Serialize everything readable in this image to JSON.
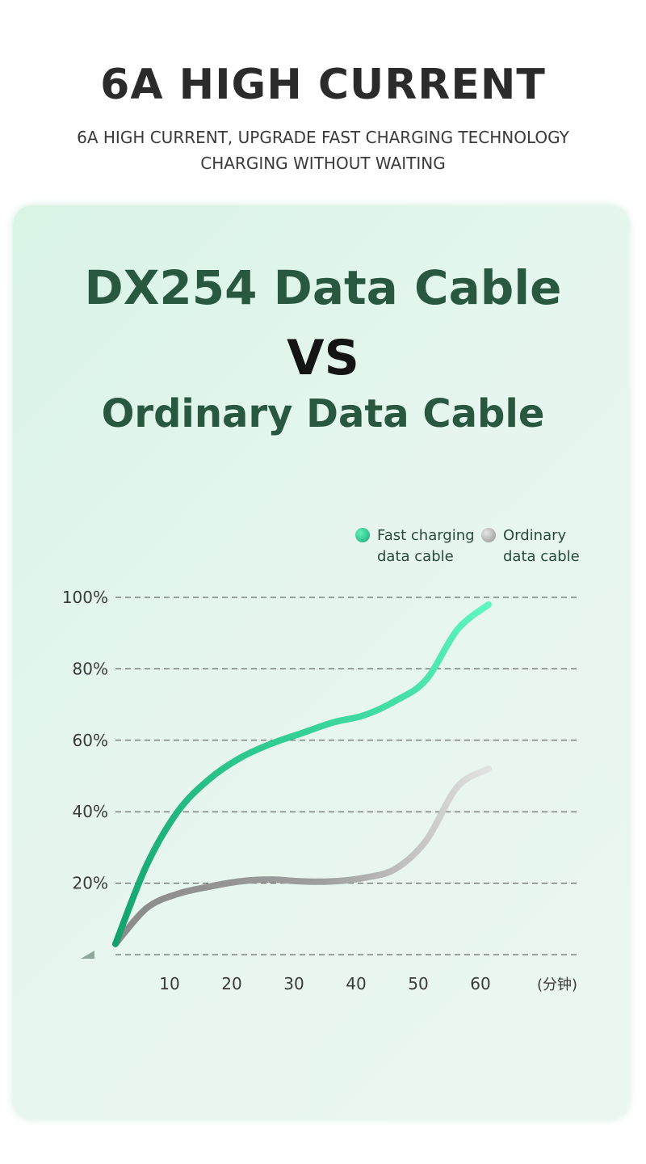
{
  "header": {
    "title": "6A HIGH CURRENT",
    "subtitle_line1": "6A HIGH CURRENT, UPGRADE FAST CHARGING TECHNOLOGY",
    "subtitle_line2": "CHARGING WITHOUT WAITING"
  },
  "comparison": {
    "product": "DX254 Data Cable",
    "versus": "VS",
    "competitor": "Ordinary Data Cable"
  },
  "colors": {
    "fast_series": "#2fd394",
    "ordinary_series": "#9a9a9a",
    "title_green": "#285940"
  },
  "chart_data": {
    "type": "line",
    "title": "",
    "xlabel": "",
    "x_unit_label": "(分钟)",
    "ylabel": "",
    "x_ticks": [
      10,
      20,
      30,
      40,
      50,
      60
    ],
    "y_ticks": [
      "20%",
      "40%",
      "60%",
      "80%",
      "100%"
    ],
    "y_tick_values": [
      20,
      40,
      60,
      80,
      100
    ],
    "xlim": [
      0,
      65
    ],
    "ylim": [
      0,
      100
    ],
    "grid": "horizontal-dashed",
    "legend_position": "top-right",
    "series": [
      {
        "name": "Fast charging data cable",
        "legend_line1": "Fast charging",
        "legend_line2": "data cable",
        "x": [
          0,
          5,
          10,
          15,
          20,
          25,
          30,
          35,
          40,
          45,
          50,
          55,
          60
        ],
        "y": [
          3,
          25,
          40,
          49,
          55,
          59,
          62,
          65,
          67,
          71,
          77,
          91,
          98
        ]
      },
      {
        "name": "Ordinary data cable",
        "legend_line1": "Ordinary",
        "legend_line2": "data cable",
        "x": [
          0,
          5,
          10,
          15,
          20,
          25,
          30,
          35,
          40,
          45,
          50,
          55,
          60
        ],
        "y": [
          3,
          13,
          17,
          19,
          20.5,
          21,
          20.5,
          20.5,
          21.5,
          24,
          32,
          47,
          52
        ]
      }
    ]
  }
}
